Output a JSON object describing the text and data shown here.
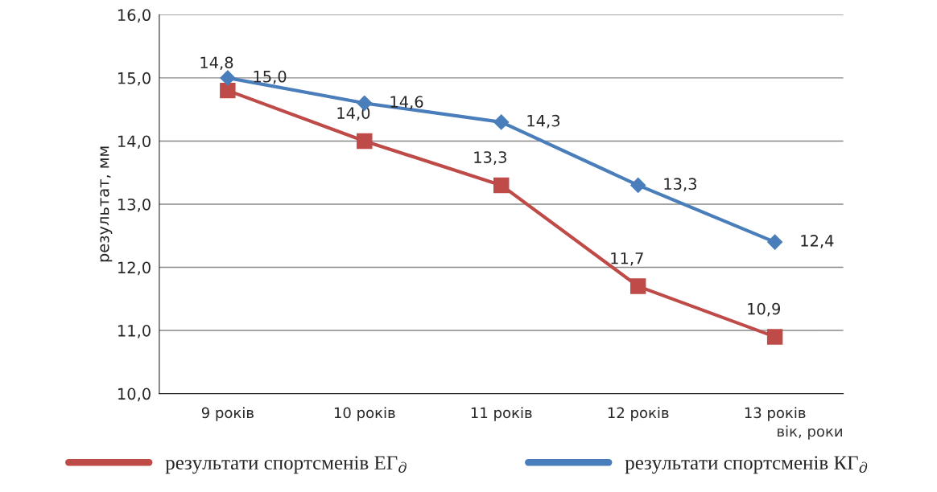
{
  "chart_data": {
    "type": "line",
    "categories": [
      "9 років",
      "10 років",
      "11 років",
      "12 років",
      "13 років"
    ],
    "series": [
      {
        "name": "результати спортсменів ЕГ$_{д}$",
        "color": "#be4b48",
        "marker": "square",
        "values": [
          14.8,
          14.0,
          13.3,
          11.7,
          10.9
        ],
        "value_labels": [
          "14,8",
          "14,0",
          "13,3",
          "11,7",
          "10,9"
        ]
      },
      {
        "name": "результати спортсменів КГ$_{д}$",
        "color": "#4a7ebb",
        "marker": "diamond",
        "values": [
          15.0,
          14.6,
          14.3,
          13.3,
          12.4
        ],
        "value_labels": [
          "15,0",
          "14,6",
          "14,3",
          "13,3",
          "12,4"
        ]
      }
    ],
    "ylim": [
      10,
      16
    ],
    "yticks": [
      {
        "value": 10,
        "label": "10,0"
      },
      {
        "value": 11,
        "label": "11,0"
      },
      {
        "value": 12,
        "label": "12,0"
      },
      {
        "value": 13,
        "label": "13,0"
      },
      {
        "value": 14,
        "label": "14,0"
      },
      {
        "value": 15,
        "label": "15,0"
      },
      {
        "value": 16,
        "label": "16,0"
      }
    ],
    "xlabel": "вік, роки",
    "ylabel": "результат, мм",
    "grid": "y",
    "legend": "bottom"
  }
}
